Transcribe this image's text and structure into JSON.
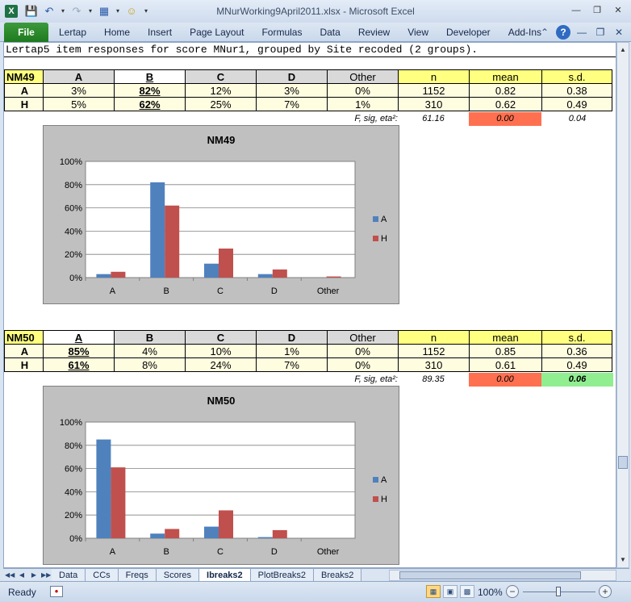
{
  "window": {
    "title": "MNurWorking9April2011.xlsx - Microsoft Excel",
    "app_icon": "X"
  },
  "ribbon": {
    "file_label": "File",
    "tabs": [
      "Lertap",
      "Home",
      "Insert",
      "Page Layout",
      "Formulas",
      "Data",
      "Review",
      "View",
      "Developer",
      "Add-Ins"
    ]
  },
  "sheet": {
    "header": "Lertap5 item responses for score MNur1, grouped by Site recoded (2 groups).",
    "tables": [
      {
        "item": "NM49",
        "cols": [
          "A",
          "B",
          "C",
          "D",
          "Other",
          "n",
          "mean",
          "s.d."
        ],
        "rows": [
          {
            "label": "A",
            "vals": [
              "3%",
              "82%",
              "12%",
              "3%",
              "0%",
              "1152",
              "0.82",
              "0.38"
            ]
          },
          {
            "label": "H",
            "vals": [
              "5%",
              "62%",
              "25%",
              "7%",
              "1%",
              "310",
              "0.62",
              "0.49"
            ]
          }
        ],
        "stats_label": "F, sig, eta²:",
        "F": "61.16",
        "sig": "0.00",
        "eta": "0.04"
      },
      {
        "item": "NM50",
        "cols": [
          "A",
          "B",
          "C",
          "D",
          "Other",
          "n",
          "mean",
          "s.d."
        ],
        "rows": [
          {
            "label": "A",
            "vals": [
              "85%",
              "4%",
              "10%",
              "1%",
              "0%",
              "1152",
              "0.85",
              "0.36"
            ]
          },
          {
            "label": "H",
            "vals": [
              "61%",
              "8%",
              "24%",
              "7%",
              "0%",
              "310",
              "0.61",
              "0.49"
            ]
          }
        ],
        "stats_label": "F, sig, eta²:",
        "F": "89.35",
        "sig": "0.00",
        "eta": "0.06"
      }
    ]
  },
  "chart_data": [
    {
      "type": "bar",
      "title": "NM49",
      "categories": [
        "A",
        "B",
        "C",
        "D",
        "Other"
      ],
      "series": [
        {
          "name": "A",
          "values": [
            3,
            82,
            12,
            3,
            0
          ]
        },
        {
          "name": "H",
          "values": [
            5,
            62,
            25,
            7,
            1
          ]
        }
      ],
      "yticks": [
        "0%",
        "20%",
        "40%",
        "60%",
        "80%",
        "100%"
      ],
      "ylim": [
        0,
        100
      ],
      "grid": true,
      "legend": "right",
      "colors": [
        "#4f81bd",
        "#c0504d"
      ]
    },
    {
      "type": "bar",
      "title": "NM50",
      "categories": [
        "A",
        "B",
        "C",
        "D",
        "Other"
      ],
      "series": [
        {
          "name": "A",
          "values": [
            85,
            4,
            10,
            1,
            0
          ]
        },
        {
          "name": "H",
          "values": [
            61,
            8,
            24,
            7,
            0
          ]
        }
      ],
      "yticks": [
        "0%",
        "20%",
        "40%",
        "60%",
        "80%",
        "100%"
      ],
      "ylim": [
        0,
        100
      ],
      "grid": true,
      "legend": "right",
      "colors": [
        "#4f81bd",
        "#c0504d"
      ]
    }
  ],
  "sheet_tabs": [
    "Data",
    "CCs",
    "Freqs",
    "Scores",
    "Ibreaks2",
    "PlotBreaks2",
    "Breaks2"
  ],
  "active_tab": "Ibreaks2",
  "status": {
    "ready": "Ready",
    "zoom": "100%"
  }
}
